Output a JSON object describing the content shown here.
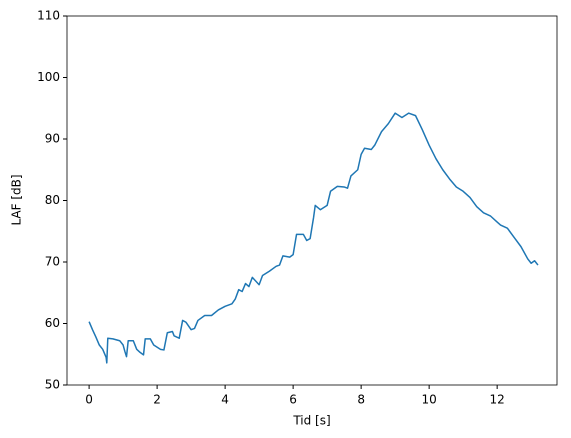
{
  "chart_data": {
    "type": "line",
    "xlabel": "Tid [s]",
    "ylabel": "LAF [dB]",
    "color": "#1f77b4",
    "x": [
      0,
      0.1,
      0.2,
      0.3,
      0.4,
      0.5,
      0.52,
      0.55,
      0.7,
      0.9,
      1.0,
      1.05,
      1.1,
      1.15,
      1.3,
      1.4,
      1.5,
      1.6,
      1.65,
      1.8,
      1.9,
      2.1,
      2.2,
      2.3,
      2.45,
      2.5,
      2.65,
      2.75,
      2.85,
      3.0,
      3.1,
      3.2,
      3.4,
      3.6,
      3.8,
      4.0,
      4.2,
      4.3,
      4.4,
      4.5,
      4.6,
      4.7,
      4.8,
      5.0,
      5.1,
      5.3,
      5.5,
      5.6,
      5.7,
      5.9,
      6.0,
      6.1,
      6.3,
      6.4,
      6.5,
      6.6,
      6.65,
      6.8,
      7.0,
      7.1,
      7.3,
      7.5,
      7.6,
      7.7,
      7.9,
      8.0,
      8.1,
      8.3,
      8.4,
      8.6,
      8.8,
      9.0,
      9.2,
      9.4,
      9.6,
      9.8,
      10.0,
      10.2,
      10.4,
      10.6,
      10.8,
      11.0,
      11.2,
      11.4,
      11.6,
      11.8,
      12.0,
      12.1,
      12.3,
      12.5,
      12.7,
      12.9,
      13.0,
      13.1,
      13.2
    ],
    "values": [
      60.3,
      59.0,
      57.8,
      56.5,
      55.8,
      54.5,
      53.6,
      57.6,
      57.5,
      57.2,
      56.5,
      55.5,
      54.6,
      57.2,
      57.2,
      55.8,
      55.3,
      54.9,
      57.5,
      57.5,
      56.5,
      55.8,
      55.7,
      58.5,
      58.7,
      58.0,
      57.6,
      60.5,
      60.2,
      59.0,
      59.2,
      60.5,
      61.3,
      61.3,
      62.2,
      62.8,
      63.2,
      64.0,
      65.5,
      65.2,
      66.5,
      66.0,
      67.5,
      66.3,
      67.8,
      68.5,
      69.3,
      69.5,
      71.0,
      70.8,
      71.2,
      74.5,
      74.5,
      73.5,
      73.8,
      77.2,
      79.2,
      78.5,
      79.2,
      81.5,
      82.3,
      82.2,
      82.0,
      84.0,
      85.0,
      87.5,
      88.5,
      88.3,
      89.0,
      91.2,
      92.5,
      94.2,
      93.5,
      94.2,
      93.8,
      91.5,
      89.0,
      86.8,
      85.0,
      83.5,
      82.2,
      81.5,
      80.5,
      79.0,
      78.0,
      77.5,
      76.5,
      76.0,
      75.5,
      74.0,
      72.5,
      70.5,
      69.8,
      70.2,
      69.5
    ],
    "xlim": [
      -0.65,
      13.76
    ],
    "ylim": [
      50,
      110
    ],
    "xticks": [
      0,
      2,
      4,
      6,
      8,
      10,
      12
    ],
    "yticks": [
      50,
      60,
      70,
      80,
      90,
      100,
      110
    ]
  }
}
